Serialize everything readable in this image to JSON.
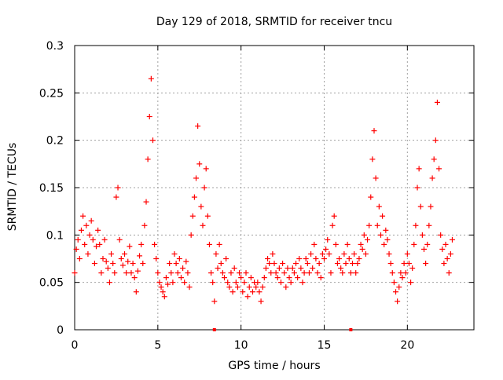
{
  "chart_data": {
    "type": "scatter",
    "title": "Day 129 of 2018, SRMTID for receiver tncu",
    "xlabel": "GPS time / hours",
    "ylabel": "SRMTID / TECUs",
    "xlim": [
      0,
      24
    ],
    "ylim": [
      0,
      0.3
    ],
    "x_ticks": [
      0,
      5,
      10,
      15,
      20
    ],
    "x_tick_labels": [
      "0",
      "5",
      "10",
      "15",
      "20"
    ],
    "y_ticks": [
      0,
      0.05,
      0.1,
      0.15,
      0.2,
      0.25,
      0.3
    ],
    "y_tick_labels": [
      "0",
      "0.05",
      "0.1",
      "0.15",
      "0.2",
      "0.25",
      "0.3"
    ],
    "grid": true,
    "marker": "plus",
    "series": [
      {
        "name": "SRMTID",
        "color": "#ff0000",
        "points": [
          [
            0.0,
            0.06
          ],
          [
            0.1,
            0.085
          ],
          [
            0.2,
            0.095
          ],
          [
            0.3,
            0.075
          ],
          [
            0.4,
            0.105
          ],
          [
            0.5,
            0.12
          ],
          [
            0.6,
            0.09
          ],
          [
            0.7,
            0.11
          ],
          [
            0.8,
            0.08
          ],
          [
            0.9,
            0.1
          ],
          [
            1.0,
            0.115
          ],
          [
            1.1,
            0.095
          ],
          [
            1.2,
            0.07
          ],
          [
            1.3,
            0.088
          ],
          [
            1.4,
            0.105
          ],
          [
            1.5,
            0.09
          ],
          [
            1.6,
            0.06
          ],
          [
            1.7,
            0.075
          ],
          [
            1.8,
            0.095
          ],
          [
            1.9,
            0.072
          ],
          [
            2.0,
            0.065
          ],
          [
            2.1,
            0.05
          ],
          [
            2.2,
            0.08
          ],
          [
            2.3,
            0.07
          ],
          [
            2.4,
            0.06
          ],
          [
            2.5,
            0.14
          ],
          [
            2.6,
            0.15
          ],
          [
            2.7,
            0.095
          ],
          [
            2.8,
            0.075
          ],
          [
            2.9,
            0.068
          ],
          [
            3.0,
            0.08
          ],
          [
            3.1,
            0.06
          ],
          [
            3.2,
            0.072
          ],
          [
            3.3,
            0.088
          ],
          [
            3.4,
            0.06
          ],
          [
            3.5,
            0.07
          ],
          [
            3.6,
            0.055
          ],
          [
            3.7,
            0.04
          ],
          [
            3.8,
            0.062
          ],
          [
            3.9,
            0.078
          ],
          [
            4.0,
            0.09
          ],
          [
            4.1,
            0.07
          ],
          [
            4.2,
            0.11
          ],
          [
            4.3,
            0.135
          ],
          [
            4.4,
            0.18
          ],
          [
            4.5,
            0.225
          ],
          [
            4.6,
            0.265
          ],
          [
            4.7,
            0.2
          ],
          [
            4.8,
            0.09
          ],
          [
            4.9,
            0.075
          ],
          [
            5.0,
            0.06
          ],
          [
            5.1,
            0.05
          ],
          [
            5.2,
            0.045
          ],
          [
            5.3,
            0.04
          ],
          [
            5.4,
            0.035
          ],
          [
            5.5,
            0.055
          ],
          [
            5.6,
            0.048
          ],
          [
            5.7,
            0.07
          ],
          [
            5.8,
            0.06
          ],
          [
            5.9,
            0.05
          ],
          [
            6.0,
            0.08
          ],
          [
            6.1,
            0.07
          ],
          [
            6.2,
            0.06
          ],
          [
            6.3,
            0.075
          ],
          [
            6.4,
            0.055
          ],
          [
            6.5,
            0.065
          ],
          [
            6.6,
            0.05
          ],
          [
            6.7,
            0.072
          ],
          [
            6.8,
            0.06
          ],
          [
            6.9,
            0.045
          ],
          [
            7.0,
            0.1
          ],
          [
            7.1,
            0.12
          ],
          [
            7.2,
            0.14
          ],
          [
            7.3,
            0.16
          ],
          [
            7.4,
            0.215
          ],
          [
            7.5,
            0.175
          ],
          [
            7.6,
            0.13
          ],
          [
            7.7,
            0.11
          ],
          [
            7.8,
            0.15
          ],
          [
            7.9,
            0.17
          ],
          [
            8.0,
            0.12
          ],
          [
            8.1,
            0.09
          ],
          [
            8.2,
            0.06
          ],
          [
            8.3,
            0.05
          ],
          [
            8.4,
            0.03
          ],
          [
            8.5,
            0.08
          ],
          [
            8.6,
            0.065
          ],
          [
            8.7,
            0.09
          ],
          [
            8.8,
            0.07
          ],
          [
            8.9,
            0.06
          ],
          [
            9.0,
            0.055
          ],
          [
            9.1,
            0.075
          ],
          [
            9.2,
            0.05
          ],
          [
            9.3,
            0.045
          ],
          [
            9.4,
            0.06
          ],
          [
            9.5,
            0.04
          ],
          [
            9.6,
            0.065
          ],
          [
            9.7,
            0.05
          ],
          [
            9.8,
            0.045
          ],
          [
            9.9,
            0.06
          ],
          [
            10.0,
            0.055
          ],
          [
            10.1,
            0.04
          ],
          [
            10.2,
            0.05
          ],
          [
            10.3,
            0.06
          ],
          [
            10.4,
            0.035
          ],
          [
            10.5,
            0.045
          ],
          [
            10.6,
            0.055
          ],
          [
            10.7,
            0.04
          ],
          [
            10.8,
            0.05
          ],
          [
            10.9,
            0.045
          ],
          [
            11.0,
            0.05
          ],
          [
            11.1,
            0.04
          ],
          [
            11.2,
            0.03
          ],
          [
            11.3,
            0.045
          ],
          [
            11.4,
            0.055
          ],
          [
            11.5,
            0.065
          ],
          [
            11.6,
            0.075
          ],
          [
            11.7,
            0.07
          ],
          [
            11.8,
            0.06
          ],
          [
            11.9,
            0.08
          ],
          [
            12.0,
            0.07
          ],
          [
            12.1,
            0.06
          ],
          [
            12.2,
            0.055
          ],
          [
            12.3,
            0.065
          ],
          [
            12.4,
            0.05
          ],
          [
            12.5,
            0.07
          ],
          [
            12.6,
            0.06
          ],
          [
            12.7,
            0.045
          ],
          [
            12.8,
            0.065
          ],
          [
            12.9,
            0.055
          ],
          [
            13.0,
            0.05
          ],
          [
            13.1,
            0.065
          ],
          [
            13.2,
            0.06
          ],
          [
            13.3,
            0.07
          ],
          [
            13.4,
            0.055
          ],
          [
            13.5,
            0.075
          ],
          [
            13.6,
            0.065
          ],
          [
            13.7,
            0.05
          ],
          [
            13.8,
            0.06
          ],
          [
            13.9,
            0.075
          ],
          [
            14.0,
            0.07
          ],
          [
            14.1,
            0.06
          ],
          [
            14.2,
            0.08
          ],
          [
            14.3,
            0.065
          ],
          [
            14.4,
            0.09
          ],
          [
            14.5,
            0.075
          ],
          [
            14.6,
            0.06
          ],
          [
            14.7,
            0.07
          ],
          [
            14.8,
            0.055
          ],
          [
            14.9,
            0.08
          ],
          [
            15.0,
            0.075
          ],
          [
            15.1,
            0.085
          ],
          [
            15.2,
            0.095
          ],
          [
            15.3,
            0.08
          ],
          [
            15.4,
            0.06
          ],
          [
            15.5,
            0.11
          ],
          [
            15.6,
            0.12
          ],
          [
            15.7,
            0.09
          ],
          [
            15.8,
            0.07
          ],
          [
            15.9,
            0.075
          ],
          [
            16.0,
            0.065
          ],
          [
            16.1,
            0.06
          ],
          [
            16.2,
            0.08
          ],
          [
            16.3,
            0.07
          ],
          [
            16.4,
            0.09
          ],
          [
            16.5,
            0.075
          ],
          [
            16.6,
            0.06
          ],
          [
            16.7,
            0.07
          ],
          [
            16.8,
            0.08
          ],
          [
            16.9,
            0.06
          ],
          [
            17.0,
            0.07
          ],
          [
            17.1,
            0.075
          ],
          [
            17.2,
            0.09
          ],
          [
            17.3,
            0.085
          ],
          [
            17.4,
            0.1
          ],
          [
            17.5,
            0.08
          ],
          [
            17.6,
            0.095
          ],
          [
            17.7,
            0.11
          ],
          [
            17.8,
            0.14
          ],
          [
            17.9,
            0.18
          ],
          [
            18.0,
            0.21
          ],
          [
            18.1,
            0.16
          ],
          [
            18.2,
            0.11
          ],
          [
            18.3,
            0.13
          ],
          [
            18.4,
            0.1
          ],
          [
            18.5,
            0.12
          ],
          [
            18.6,
            0.09
          ],
          [
            18.7,
            0.105
          ],
          [
            18.8,
            0.095
          ],
          [
            18.9,
            0.08
          ],
          [
            19.0,
            0.07
          ],
          [
            19.1,
            0.06
          ],
          [
            19.2,
            0.05
          ],
          [
            19.3,
            0.04
          ],
          [
            19.4,
            0.03
          ],
          [
            19.5,
            0.045
          ],
          [
            19.6,
            0.06
          ],
          [
            19.7,
            0.055
          ],
          [
            19.8,
            0.07
          ],
          [
            19.9,
            0.06
          ],
          [
            20.0,
            0.08
          ],
          [
            20.1,
            0.07
          ],
          [
            20.2,
            0.05
          ],
          [
            20.3,
            0.065
          ],
          [
            20.4,
            0.09
          ],
          [
            20.5,
            0.11
          ],
          [
            20.6,
            0.15
          ],
          [
            20.7,
            0.17
          ],
          [
            20.8,
            0.13
          ],
          [
            20.9,
            0.1
          ],
          [
            21.0,
            0.085
          ],
          [
            21.1,
            0.07
          ],
          [
            21.2,
            0.09
          ],
          [
            21.3,
            0.11
          ],
          [
            21.4,
            0.13
          ],
          [
            21.5,
            0.16
          ],
          [
            21.6,
            0.18
          ],
          [
            21.7,
            0.2
          ],
          [
            21.8,
            0.24
          ],
          [
            21.9,
            0.17
          ],
          [
            22.0,
            0.1
          ],
          [
            22.1,
            0.085
          ],
          [
            22.2,
            0.07
          ],
          [
            22.3,
            0.09
          ],
          [
            22.4,
            0.075
          ],
          [
            22.5,
            0.06
          ],
          [
            22.6,
            0.08
          ],
          [
            22.7,
            0.095
          ]
        ]
      }
    ],
    "highlight_points": [
      {
        "x": 8.4,
        "y": 0.0
      },
      {
        "x": 16.6,
        "y": 0.0
      }
    ]
  }
}
